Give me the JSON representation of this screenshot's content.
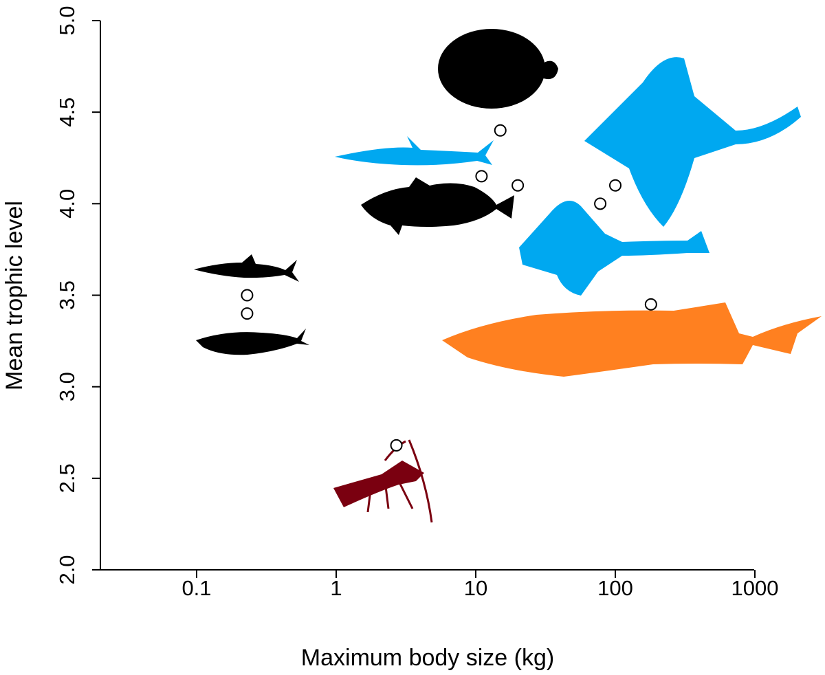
{
  "chart_data": {
    "type": "scatter",
    "xlabel": "Maximum body size (kg)",
    "ylabel": "Mean trophic level",
    "x_scale": "log",
    "xlim": [
      0.02,
      1000
    ],
    "ylim": [
      2.0,
      5.0
    ],
    "x_ticks": [
      0.1,
      1,
      10,
      100,
      1000
    ],
    "x_tick_labels": [
      "0.1",
      "1",
      "10",
      "100",
      "1000"
    ],
    "y_ticks": [
      2.0,
      2.5,
      3.0,
      3.5,
      4.0,
      4.5,
      5.0
    ],
    "y_tick_labels": [
      "2.0",
      "2.5",
      "3.0",
      "3.5",
      "4.0",
      "4.5",
      "5.0"
    ],
    "grid": false,
    "points": [
      {
        "x": 0.23,
        "y": 3.5
      },
      {
        "x": 0.23,
        "y": 3.4
      },
      {
        "x": 2.7,
        "y": 2.68
      },
      {
        "x": 11,
        "y": 4.15
      },
      {
        "x": 15,
        "y": 4.4
      },
      {
        "x": 20,
        "y": 4.1
      },
      {
        "x": 78,
        "y": 4.0
      },
      {
        "x": 100,
        "y": 4.1
      },
      {
        "x": 180,
        "y": 3.45
      }
    ],
    "silhouettes": [
      {
        "icon": "flatfish-silhouette",
        "color": "#000000"
      },
      {
        "icon": "dogfish-silhouette",
        "color": "#00a8f0"
      },
      {
        "icon": "cod-silhouette",
        "color": "#000000"
      },
      {
        "icon": "skate-silhouette",
        "color": "#00a8f0"
      },
      {
        "icon": "ray-silhouette",
        "color": "#00a8f0"
      },
      {
        "icon": "sprat-silhouette",
        "color": "#000000"
      },
      {
        "icon": "herring-silhouette",
        "color": "#000000"
      },
      {
        "icon": "sturgeon-silhouette",
        "color": "#ff8020"
      },
      {
        "icon": "crayfish-silhouette",
        "color": "#7a0010"
      }
    ]
  }
}
